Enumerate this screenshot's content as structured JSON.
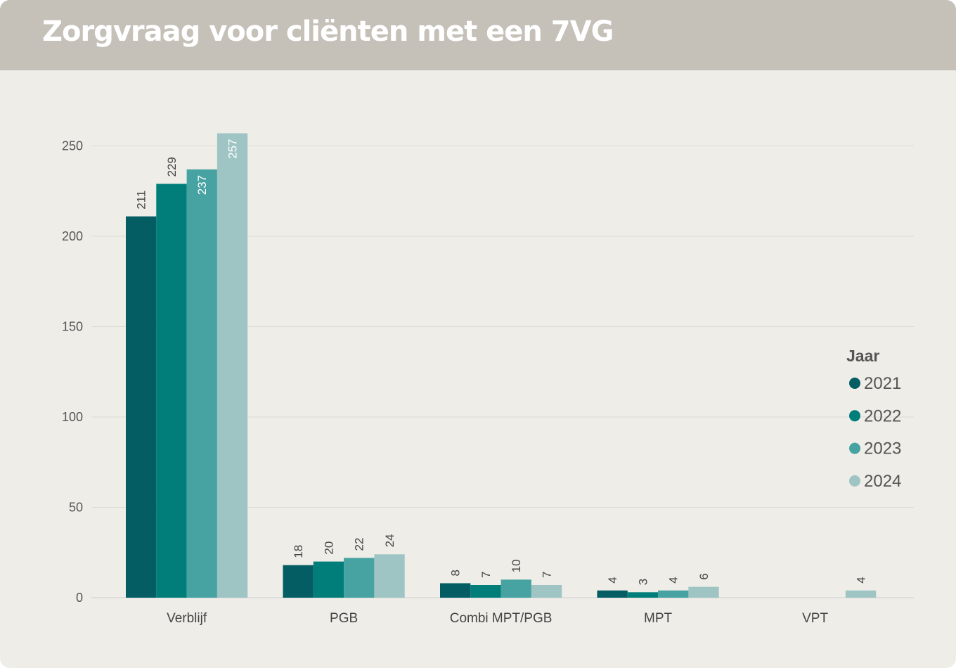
{
  "header": {
    "title": "Zorgvraag voor cliënten met een 7VG"
  },
  "chart_data": {
    "type": "bar",
    "categories": [
      "Verblijf",
      "PGB",
      "Combi MPT/PGB",
      "MPT",
      "VPT"
    ],
    "series": [
      {
        "name": "2021",
        "color": "#035d63",
        "values": [
          211,
          18,
          8,
          4,
          null
        ]
      },
      {
        "name": "2022",
        "color": "#017d7a",
        "values": [
          229,
          20,
          7,
          3,
          null
        ]
      },
      {
        "name": "2023",
        "color": "#47a3a2",
        "values": [
          237,
          22,
          10,
          4,
          null
        ]
      },
      {
        "name": "2024",
        "color": "#9fc4c4",
        "values": [
          257,
          24,
          7,
          6,
          4
        ]
      }
    ],
    "yticks": [
      0,
      50,
      100,
      150,
      200,
      250
    ],
    "ylim": [
      0,
      257
    ],
    "xlabel": "",
    "ylabel": "",
    "grid": true,
    "legend": {
      "title": "Jaar",
      "position": "right"
    },
    "data_labels": true
  }
}
